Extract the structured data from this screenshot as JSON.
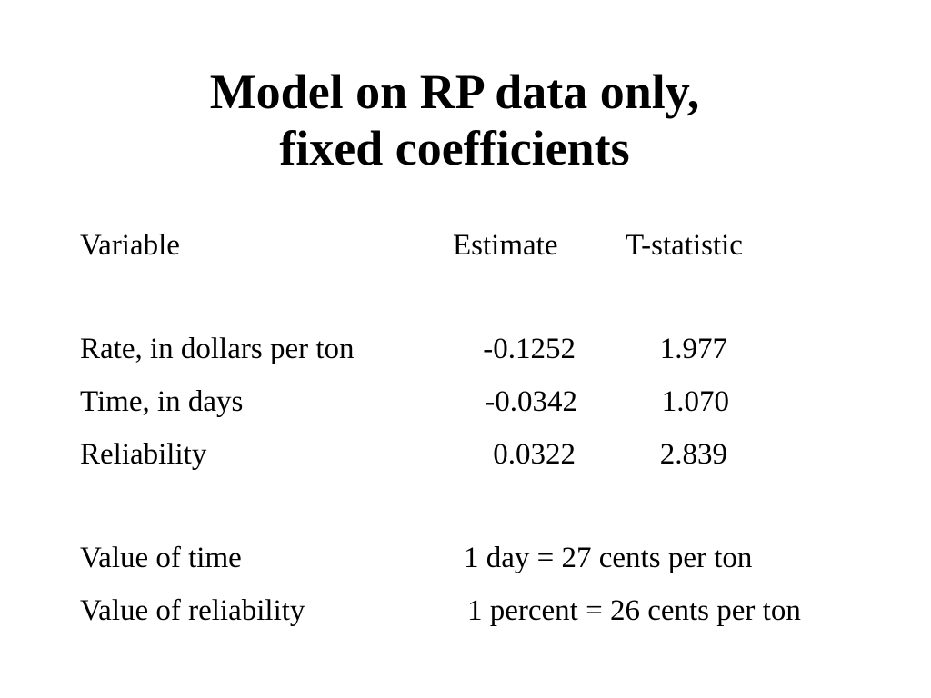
{
  "slide": {
    "title_line1": "Model on RP data only,",
    "title_line2": "fixed coefficients",
    "table": {
      "headers": {
        "variable": "Variable",
        "estimate": "Estimate",
        "tstat": "T-statistic"
      },
      "rows": [
        {
          "variable": "Rate, in dollars per ton",
          "estimate": "-0.1252",
          "tstat": "1.977"
        },
        {
          "variable": "Time, in days",
          "estimate": "-0.0342",
          "tstat": "1.070"
        },
        {
          "variable": "Reliability",
          "estimate": "0.0322",
          "tstat": "2.839"
        }
      ]
    },
    "values": [
      {
        "label": "Value of time",
        "value": "1 day = 27 cents per ton"
      },
      {
        "label": "Value of reliability",
        "value": "1 percent = 26 cents per ton"
      }
    ]
  }
}
